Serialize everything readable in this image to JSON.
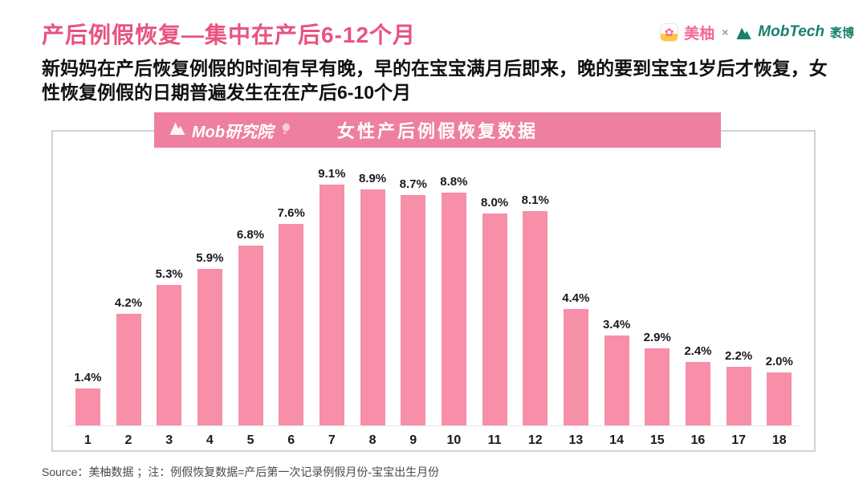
{
  "page": {
    "title": "产后例假恢复—集中在产后6-12个月",
    "subtitle": "新妈妈在产后恢复例假的时间有早有晚，早的在宝宝满月后即来，晚的要到宝宝1岁后才恢复，女性恢复例假的日期普遍发生在在产后6-10个月",
    "source_note": "Source：美柚数据 ；注：例假恢复数据=产后第一次记录例假月份-宝宝出生月份"
  },
  "header_logos": {
    "meiyou_icon_glyph": "✿",
    "meiyou_label": "美柚",
    "separator": "×",
    "mobtech_label": "MobTech",
    "mobtech_suffix": "袤博"
  },
  "chart_banner": {
    "logo_text": "Mob研究院",
    "title": "女性产后例假恢复数据"
  },
  "colors": {
    "title_pink": "#E8537F",
    "banner_pink": "#EE7F9F",
    "bar_pink": "#F68FA7",
    "mobtech_teal": "#17806E",
    "meiyou_pink": "#F2679A",
    "text_dark": "#111111",
    "source_gray": "#4A4A4A"
  },
  "chart_data": {
    "type": "bar",
    "title": "女性产后例假恢复数据",
    "categories": [
      "1",
      "2",
      "3",
      "4",
      "5",
      "6",
      "7",
      "8",
      "9",
      "10",
      "11",
      "12",
      "13",
      "14",
      "15",
      "16",
      "17",
      "18"
    ],
    "values": [
      1.4,
      4.2,
      5.3,
      5.9,
      6.8,
      7.6,
      9.1,
      8.9,
      8.7,
      8.8,
      8.0,
      8.1,
      4.4,
      3.4,
      2.9,
      2.4,
      2.2,
      2.0
    ],
    "value_labels": [
      "1.4%",
      "4.2%",
      "5.3%",
      "5.9%",
      "6.8%",
      "7.6%",
      "9.1%",
      "8.9%",
      "8.7%",
      "8.8%",
      "8.0%",
      "8.1%",
      "4.4%",
      "3.4%",
      "2.9%",
      "2.4%",
      "2.2%",
      "2.0%"
    ],
    "unit": "%",
    "xlabel": "",
    "ylabel": "",
    "ylim": [
      0,
      10
    ],
    "grid": false,
    "legend": false,
    "bar_color": "#F68FA7"
  }
}
